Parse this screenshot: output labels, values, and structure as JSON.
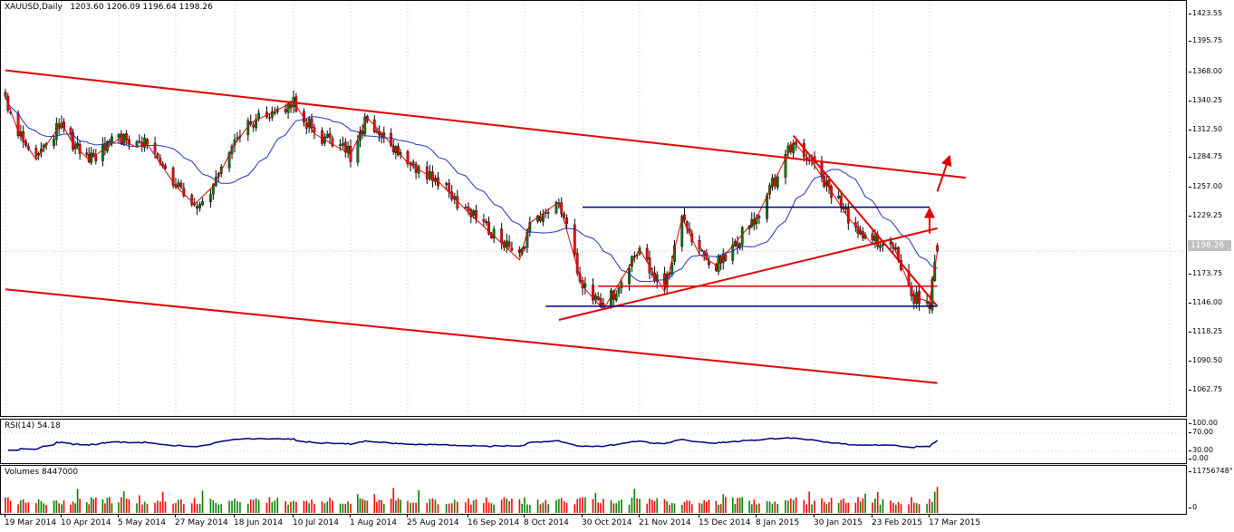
{
  "chart_header": {
    "symbol_timeframe": "XAUUSD,Daily",
    "ohlc": "1203.60 1206.09 1196.64 1198.26"
  },
  "price_axis": {
    "labels": [
      "1423.55",
      "1395.75",
      "1368.00",
      "1340.25",
      "1312.50",
      "1284.75",
      "1257.00",
      "1229.25",
      "1173.75",
      "1146.00",
      "1118.25",
      "1090.50",
      "1062.75"
    ],
    "current_price": "1198.26"
  },
  "rsi_panel": {
    "label": "RSI(14) 54.18",
    "levels": [
      "100.00",
      "70.00",
      "30.00",
      "0.00"
    ]
  },
  "volume_panel": {
    "label": "Volumes 8447000",
    "axis_labels": [
      "11756748°",
      "0"
    ]
  },
  "time_axis": {
    "labels": [
      "19 Mar 2014",
      "10 Apr 2014",
      "5 May 2014",
      "27 May 2014",
      "18 Jun 2014",
      "10 Jul 2014",
      "1 Aug 2014",
      "25 Aug 2014",
      "16 Sep 2014",
      "8 Oct 2014",
      "30 Oct 2014",
      "21 Nov 2014",
      "15 Dec 2014",
      "8 Jan 2015",
      "30 Jan 2015",
      "23 Feb 2015",
      "17 Mar 2015"
    ]
  },
  "colors": {
    "bull_candle": "#008000",
    "bear_candle": "#ff0000",
    "trendline": "#e00000",
    "level_line": "#000080",
    "moving_average": "#2030c0",
    "rsi_line": "#000080"
  },
  "chart_data": {
    "type": "candlestick",
    "instrument": "XAUUSD",
    "timeframe": "Daily",
    "last_bar": {
      "open": 1203.6,
      "high": 1206.09,
      "low": 1196.64,
      "close": 1198.26
    },
    "ylim": [
      1040,
      1436
    ],
    "x_range": [
      "19 Mar 2014",
      "20 Mar 2015"
    ],
    "close_path": [
      {
        "d": "19 Mar 2014",
        "c": 1345
      },
      {
        "d": "24 Mar 2014",
        "c": 1312
      },
      {
        "d": "31 Mar 2014",
        "c": 1285
      },
      {
        "d": "10 Apr 2014",
        "c": 1320
      },
      {
        "d": "15 Apr 2014",
        "c": 1300
      },
      {
        "d": "22 Apr 2014",
        "c": 1285
      },
      {
        "d": "5 May 2014",
        "c": 1305
      },
      {
        "d": "12 May 2014",
        "c": 1297
      },
      {
        "d": "16 May 2014",
        "c": 1300
      },
      {
        "d": "27 May 2014",
        "c": 1260
      },
      {
        "d": "3 Jun 2014",
        "c": 1243
      },
      {
        "d": "10 Jun 2014",
        "c": 1260
      },
      {
        "d": "18 Jun 2014",
        "c": 1300
      },
      {
        "d": "24 Jun 2014",
        "c": 1320
      },
      {
        "d": "10 Jul 2014",
        "c": 1340
      },
      {
        "d": "18 Jul 2014",
        "c": 1310
      },
      {
        "d": "1 Aug 2014",
        "c": 1290
      },
      {
        "d": "8 Aug 2014",
        "c": 1325
      },
      {
        "d": "15 Aug 2014",
        "c": 1308
      },
      {
        "d": "25 Aug 2014",
        "c": 1282
      },
      {
        "d": "5 Sep 2014",
        "c": 1265
      },
      {
        "d": "16 Sep 2014",
        "c": 1235
      },
      {
        "d": "25 Sep 2014",
        "c": 1215
      },
      {
        "d": "6 Oct 2014",
        "c": 1190
      },
      {
        "d": "10 Oct 2014",
        "c": 1225
      },
      {
        "d": "21 Oct 2014",
        "c": 1245
      },
      {
        "d": "30 Oct 2014",
        "c": 1165
      },
      {
        "d": "7 Nov 2014",
        "c": 1143
      },
      {
        "d": "21 Nov 2014",
        "c": 1200
      },
      {
        "d": "1 Dec 2014",
        "c": 1160
      },
      {
        "d": "8 Dec 2014",
        "c": 1230
      },
      {
        "d": "15 Dec 2014",
        "c": 1195
      },
      {
        "d": "22 Dec 2014",
        "c": 1185
      },
      {
        "d": "8 Jan 2015",
        "c": 1230
      },
      {
        "d": "22 Jan 2015",
        "c": 1302
      },
      {
        "d": "30 Jan 2015",
        "c": 1280
      },
      {
        "d": "13 Feb 2015",
        "c": 1230
      },
      {
        "d": "23 Feb 2015",
        "c": 1205
      },
      {
        "d": "2 Mar 2015",
        "c": 1210
      },
      {
        "d": "11 Mar 2015",
        "c": 1155
      },
      {
        "d": "17 Mar 2015",
        "c": 1150
      },
      {
        "d": "20 Mar 2015",
        "c": 1198.26
      }
    ],
    "annotations": [
      {
        "kind": "trendline",
        "from": [
          "19 Mar 2014",
          1370
        ],
        "to": [
          "31 Mar 2015",
          1268
        ]
      },
      {
        "kind": "trendline",
        "from": [
          "19 Mar 2014",
          1162
        ],
        "to": [
          "20 Mar 2015",
          1073
        ]
      },
      {
        "kind": "trendline",
        "from": [
          "21 Oct 2014",
          1133
        ],
        "to": [
          "20 Mar 2015",
          1220
        ]
      },
      {
        "kind": "trendline",
        "from": [
          "22 Jan 2015",
          1308
        ],
        "to": [
          "20 Mar 2015",
          1146
        ]
      },
      {
        "kind": "horizontal",
        "y": 1240,
        "from": "30 Oct 2014",
        "to": "17 Mar 2015"
      },
      {
        "kind": "horizontal",
        "y": 1146,
        "from": "16 Oct 2014",
        "to": "20 Mar 2015"
      },
      {
        "kind": "horizontal",
        "y": 1165,
        "from": "5 Nov 2014",
        "to": "20 Mar 2015"
      },
      {
        "kind": "arrow",
        "from": [
          "20 Mar 2015",
          1255
        ],
        "to": [
          "20 Mar 2015",
          1285
        ]
      },
      {
        "kind": "arrow",
        "from": [
          "17 Mar 2015",
          1215
        ],
        "to": [
          "17 Mar 2015",
          1235
        ]
      }
    ],
    "rsi": {
      "period": 14,
      "last": 54.18,
      "ylim": [
        0,
        100
      ],
      "levels": [
        30,
        70
      ]
    },
    "volume": {
      "last": 8447000,
      "max_axis": 11756748
    }
  }
}
